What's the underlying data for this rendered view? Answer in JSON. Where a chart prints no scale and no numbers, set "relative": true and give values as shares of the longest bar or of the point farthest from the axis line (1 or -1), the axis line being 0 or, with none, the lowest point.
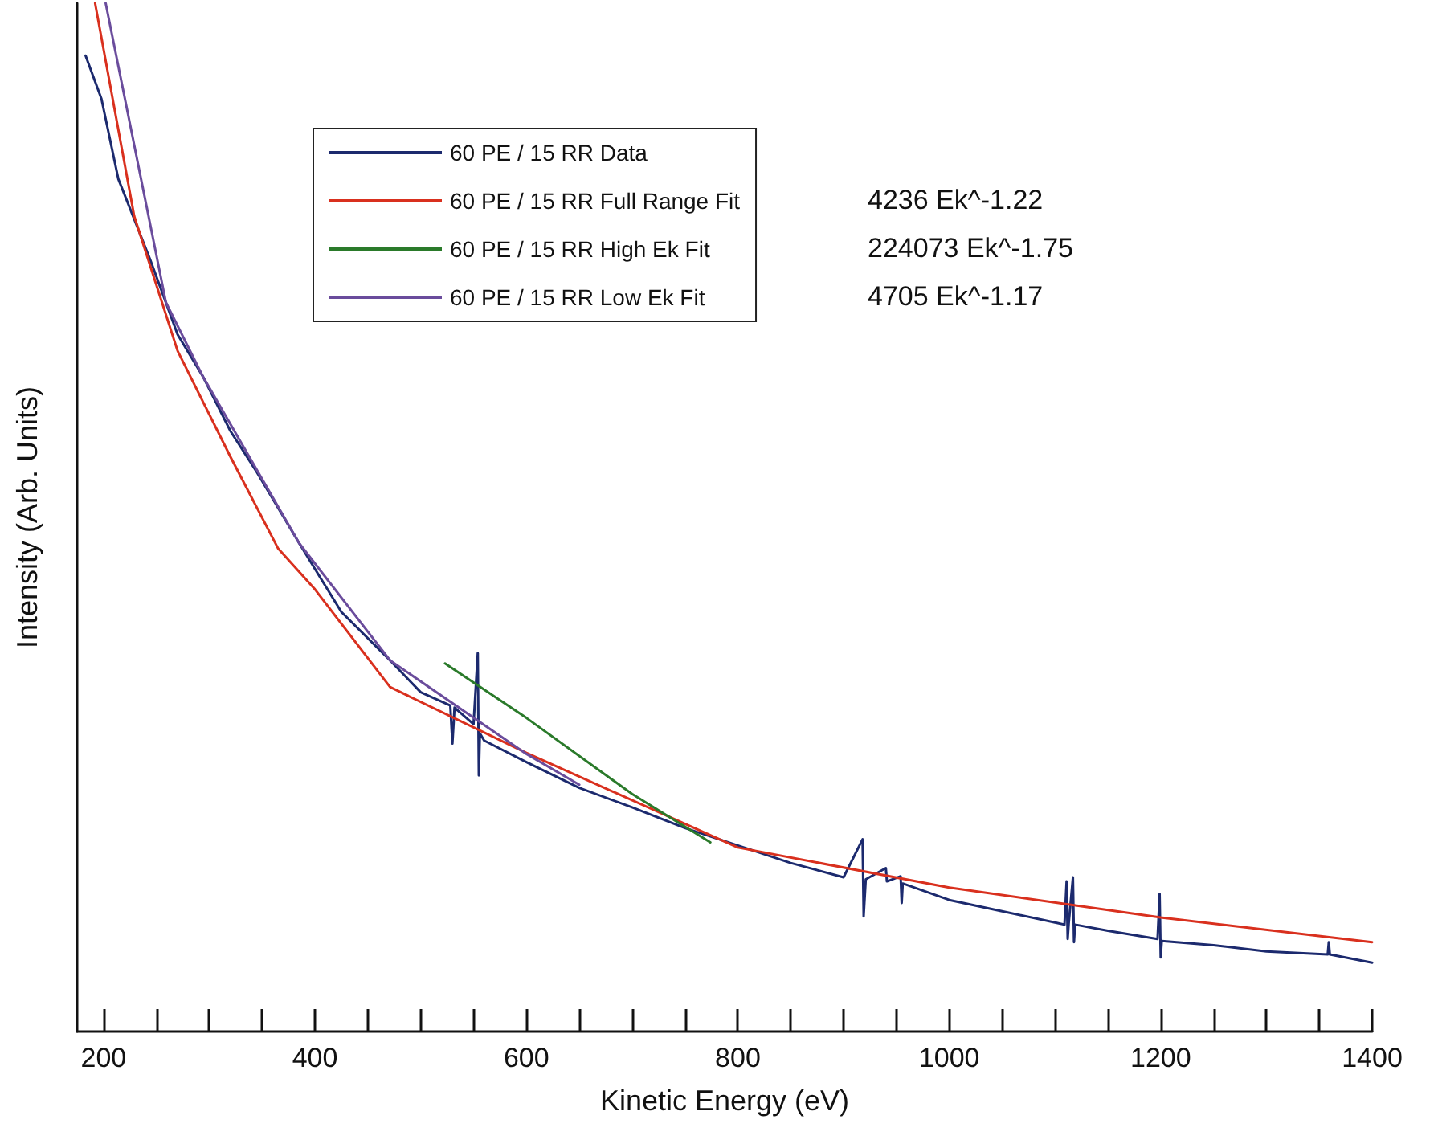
{
  "chart_data": {
    "type": "line",
    "relative": true,
    "xlabel": "Kinetic Energy (eV)",
    "ylabel": "Intensity (Arb. Units)",
    "xlim": [
      175,
      1400
    ],
    "xticks": [
      200,
      {
        "value": 250,
        "label": null
      },
      {
        "value": 300,
        "label": null
      },
      {
        "value": 350,
        "label": null
      },
      400,
      {
        "value": 450,
        "label": null
      },
      {
        "value": 500,
        "label": null
      },
      {
        "value": 550,
        "label": null
      },
      600,
      {
        "value": 650,
        "label": null
      },
      {
        "value": 700,
        "label": null
      },
      {
        "value": 750,
        "label": null
      },
      800,
      {
        "value": 850,
        "label": null
      },
      {
        "value": 900,
        "label": null
      },
      {
        "value": 950,
        "label": null
      },
      1000,
      {
        "value": 1050,
        "label": null
      },
      {
        "value": 1100,
        "label": null
      },
      {
        "value": 1150,
        "label": null
      },
      1200,
      {
        "value": 1250,
        "label": null
      },
      {
        "value": 1300,
        "label": null
      },
      {
        "value": 1350,
        "label": null
      },
      1400
    ],
    "grid": false,
    "legend": "top",
    "marker": "none",
    "line_style": "solid",
    "annotations": [
      "4236 Ek^-1.22",
      "224073 Ek^-1.75",
      "4705 Ek^-1.17"
    ],
    "series": [
      {
        "name": "60 PE / 15 RR Data",
        "color": "#1c2a6e",
        "x": [
          183,
          198,
          214,
          244,
          270,
          294,
          320,
          345,
          385,
          425,
          471,
          500,
          528,
          530,
          532,
          550,
          554,
          555,
          556,
          560,
          600,
          650,
          700,
          750,
          800,
          850,
          900,
          918,
          919,
          921,
          940,
          941,
          954,
          955,
          956,
          1000,
          1050,
          1100,
          1109,
          1111,
          1112,
          1113,
          1117,
          1118,
          1119,
          1150,
          1197,
          1199,
          1200,
          1201,
          1250,
          1300,
          1358,
          1359,
          1360,
          1400
        ],
        "values": [
          0.949,
          0.907,
          0.829,
          0.751,
          0.678,
          0.637,
          0.584,
          0.544,
          0.475,
          0.408,
          0.361,
          0.33,
          0.317,
          0.28,
          0.315,
          0.299,
          0.368,
          0.249,
          0.29,
          0.283,
          0.262,
          0.237,
          0.218,
          0.198,
          0.181,
          0.164,
          0.15,
          0.187,
          0.112,
          0.148,
          0.159,
          0.146,
          0.151,
          0.125,
          0.144,
          0.128,
          0.117,
          0.106,
          0.104,
          0.146,
          0.09,
          0.105,
          0.15,
          0.087,
          0.104,
          0.098,
          0.09,
          0.134,
          0.072,
          0.088,
          0.084,
          0.078,
          0.075,
          0.087,
          0.075,
          0.067
        ]
      },
      {
        "name": "60 PE / 15 RR Full Range Fit",
        "color": "#d9301e",
        "x": [
          192,
          229,
          270,
          320,
          365,
          400,
          471,
          600,
          800,
          1000,
          1200,
          1400
        ],
        "values": [
          1.0,
          0.793,
          0.662,
          0.559,
          0.47,
          0.43,
          0.335,
          0.271,
          0.179,
          0.14,
          0.111,
          0.087
        ]
      },
      {
        "name": "60 PE / 15 RR High Ek Fit",
        "color": "#2a7a2a",
        "x": [
          523,
          600,
          700,
          774
        ],
        "values": [
          0.358,
          0.305,
          0.231,
          0.184
        ]
      },
      {
        "name": "60 PE / 15 RR Low Ek Fit",
        "color": "#6a4c9c",
        "x": [
          202,
          259,
          294,
          385,
          471,
          600,
          650
        ],
        "values": [
          1.0,
          0.709,
          0.637,
          0.475,
          0.361,
          0.27,
          0.24
        ]
      }
    ]
  }
}
